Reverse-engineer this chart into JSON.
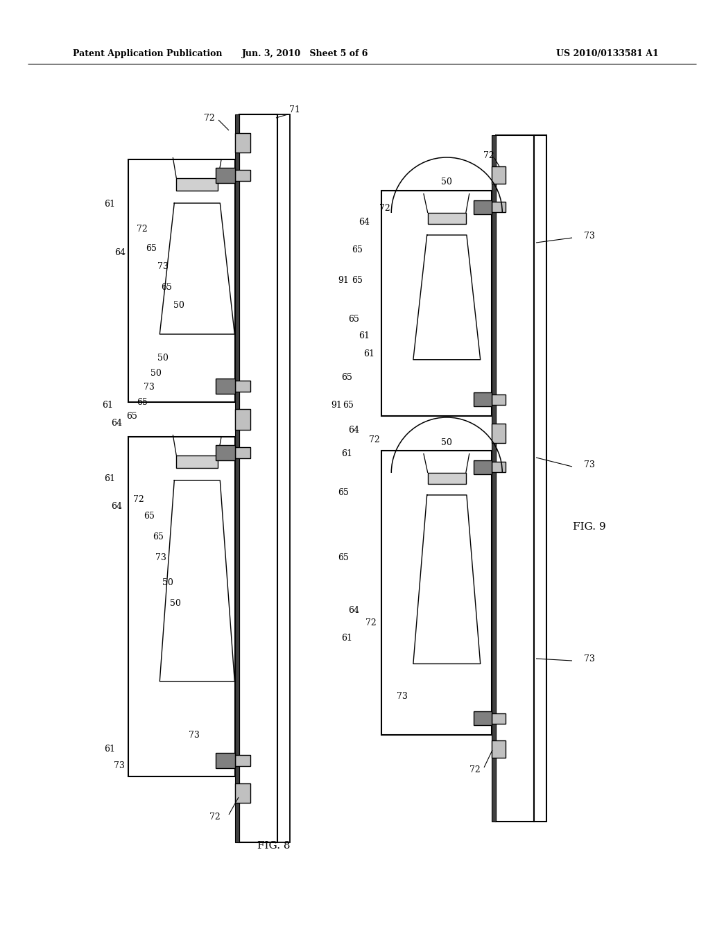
{
  "title_left": "Patent Application Publication",
  "title_center": "Jun. 3, 2010   Sheet 5 of 6",
  "title_right": "US 2010/0133581 A1",
  "fig8_label": "FIG. 8",
  "fig9_label": "FIG. 9",
  "bg_color": "#ffffff",
  "line_color": "#000000",
  "lw": 1.3
}
